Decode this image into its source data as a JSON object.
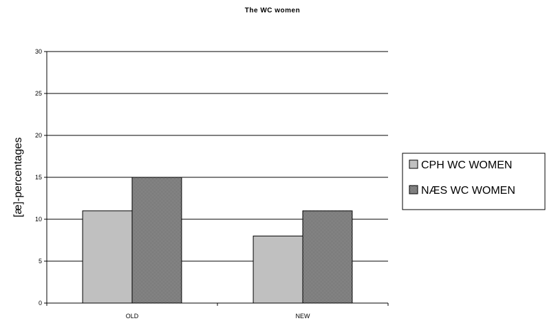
{
  "chart_data": {
    "type": "bar",
    "title": "The WC women",
    "xlabel": "",
    "ylabel": "[æ]-percentages",
    "ylim": [
      0,
      30
    ],
    "yticks": [
      0,
      5,
      10,
      15,
      20,
      25,
      30
    ],
    "categories": [
      "OLD",
      "NEW"
    ],
    "series": [
      {
        "name": "CPH WC WOMEN",
        "values": [
          11,
          8
        ],
        "fill": "#c0c0c0",
        "pattern": "solid"
      },
      {
        "name": "NÆS WC WOMEN",
        "values": [
          15,
          11
        ],
        "fill": "#a0a0a0",
        "pattern": "checker"
      }
    ],
    "grid": true,
    "legend_position": "right"
  }
}
